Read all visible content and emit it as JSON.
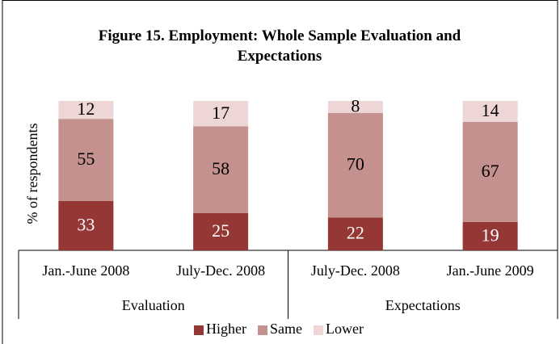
{
  "chart_data": {
    "type": "stacked_bar",
    "title": "Figure 15. Employment: Whole Sample Evaluation and Expectations",
    "y_label": "% of respondents",
    "categories": [
      "Jan.-June 2008",
      "July-Dec. 2008",
      "July-Dec. 2008",
      "Jan.-June 2009"
    ],
    "groups": [
      {
        "label": "Evaluation",
        "span": 2
      },
      {
        "label": "Expectations",
        "span": 2
      }
    ],
    "series": [
      {
        "name": "Higher",
        "color": "#953735",
        "label_color": "#ffffff",
        "values": [
          33,
          25,
          22,
          19
        ]
      },
      {
        "name": "Same",
        "color": "#c4918e",
        "label_color": "#000000",
        "values": [
          55,
          58,
          70,
          67
        ]
      },
      {
        "name": "Lower",
        "color": "#edd6d5",
        "label_color": "#000000",
        "values": [
          12,
          17,
          8,
          14
        ]
      }
    ],
    "ylim": [
      0,
      100
    ],
    "legend": "bottom"
  }
}
